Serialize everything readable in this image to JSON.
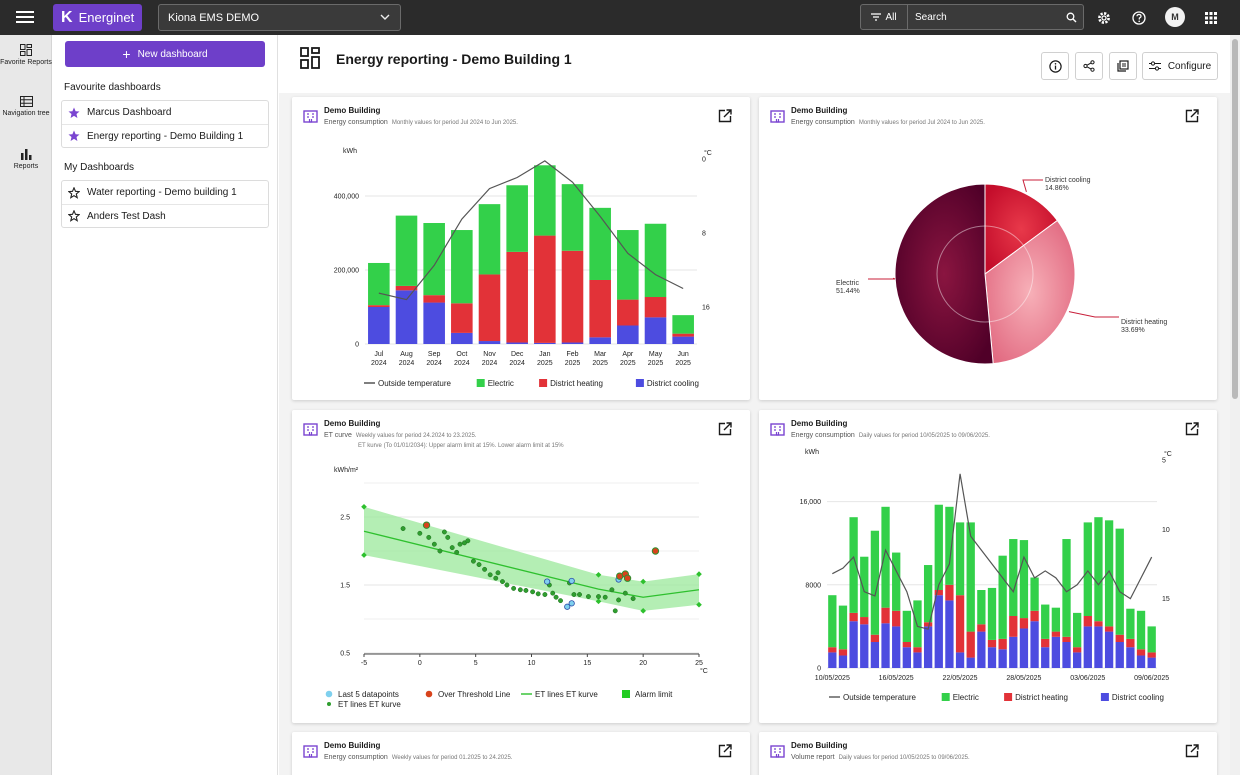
{
  "topbar": {
    "brand": "Energinet",
    "site": "Kiona EMS DEMO",
    "filter_label": "All",
    "search_placeholder": "Search",
    "avatar_initial": "M"
  },
  "rail": [
    {
      "label": "Favorite Reports",
      "icon": "dashboard-icon"
    },
    {
      "label": "Navigation tree",
      "icon": "tree-icon"
    },
    {
      "label": "Reports",
      "icon": "bar-chart-icon"
    }
  ],
  "sidebar": {
    "new_dashboard": "New dashboard",
    "favourites_title": "Favourite dashboards",
    "favourites": [
      "Marcus Dashboard",
      "Energy reporting - Demo Building 1"
    ],
    "mine_title": "My Dashboards",
    "mine": [
      "Water reporting - Demo building 1",
      "Anders Test Dash"
    ]
  },
  "main": {
    "title": "Energy reporting - Demo Building 1",
    "configure": "Configure"
  },
  "colors": {
    "accent": "#6e3fc9",
    "electric": "#33d04a",
    "heating": "#e23238",
    "cooling": "#4d4ce0",
    "temperature": "#555555",
    "et_line": "#2ec02e",
    "et_band": "#9be89b"
  },
  "cards": {
    "c1": {
      "title": "Demo Building",
      "subtitle": "Energy consumption",
      "desc": "Monthly values for period Jul 2024 to Jun 2025."
    },
    "c2": {
      "title": "Demo Building",
      "subtitle": "Energy consumption",
      "desc": "Monthly values for period Jul 2024 to Jun 2025."
    },
    "c3": {
      "title": "Demo Building",
      "subtitle": "ET curve",
      "desc": "Weekly values for period 24.2024 to 23.2025.",
      "desc2": "ET kurve (To 01/01/2034): Upper alarm limit at 15%. Lower alarm limit at 15%"
    },
    "c4": {
      "title": "Demo Building",
      "subtitle": "Energy consumption",
      "desc": "Daily values for period 10/05/2025 to 09/06/2025."
    },
    "c5": {
      "title": "Demo Building",
      "subtitle": "Energy consumption",
      "desc": "Weekly values for period 01.2025 to 24.2025."
    },
    "c6": {
      "title": "Demo Building",
      "subtitle": "Volume report",
      "desc": "Daily values for period 10/05/2025 to 09/06/2025."
    }
  },
  "chart_data": [
    {
      "id": "monthly",
      "type": "bar",
      "stacked": true,
      "categories": [
        "Jul 2024",
        "Aug 2024",
        "Sep 2024",
        "Oct 2024",
        "Nov 2024",
        "Dec 2024",
        "Jan 2025",
        "Feb 2025",
        "Mar 2025",
        "Apr 2025",
        "May 2025",
        "Jun 2025"
      ],
      "series": [
        {
          "name": "District cooling",
          "values": [
            100000,
            145000,
            112000,
            30000,
            8000,
            4000,
            3000,
            4000,
            18000,
            50000,
            72000,
            20000
          ]
        },
        {
          "name": "District heating",
          "values": [
            5000,
            12000,
            20000,
            80000,
            180000,
            245000,
            290000,
            248000,
            155000,
            70000,
            55000,
            8000
          ]
        },
        {
          "name": "Electric",
          "values": [
            114000,
            190000,
            195000,
            198000,
            190000,
            180000,
            190000,
            180000,
            195000,
            188000,
            198000,
            50000
          ]
        }
      ],
      "line": {
        "name": "Outside temperature",
        "values": [
          14.5,
          15.2,
          11.5,
          6.5,
          3.2,
          2.0,
          0.2,
          2.5,
          6.2,
          10.2,
          12.5,
          14.0
        ]
      },
      "ylabel": "kWh",
      "ylim": [
        0,
        500000
      ],
      "yticks": [
        "0",
        "200,000",
        "400,000"
      ],
      "y2label": "°C",
      "y2lim": [
        20,
        0
      ],
      "y2ticks": [
        "0",
        "8",
        "16"
      ],
      "legend": [
        "Outside temperature",
        "Electric",
        "District heating",
        "District cooling"
      ]
    },
    {
      "id": "pie",
      "type": "pie",
      "slices": [
        {
          "name": "District cooling",
          "value": 14.86,
          "label": "14.86%"
        },
        {
          "name": "District heating",
          "value": 33.69,
          "label": "33.69%"
        },
        {
          "name": "Electric",
          "value": 51.44,
          "label": "51.44%"
        }
      ]
    },
    {
      "id": "et",
      "type": "scatter",
      "ylabel": "kWh/m²",
      "xlabel": "°C",
      "xlim": [
        -5,
        25
      ],
      "ylim": [
        0.5,
        3.0
      ],
      "xticks": [
        "-5",
        "0",
        "5",
        "10",
        "15",
        "20",
        "25"
      ],
      "yticks": [
        "0.5",
        "1.5",
        "2.5"
      ],
      "points": [
        [
          -1.5,
          2.33
        ],
        [
          0,
          2.26
        ],
        [
          0.8,
          2.2
        ],
        [
          1.3,
          2.1
        ],
        [
          1.8,
          2.0
        ],
        [
          2.2,
          2.28
        ],
        [
          2.5,
          2.2
        ],
        [
          2.9,
          2.05
        ],
        [
          3.3,
          1.98
        ],
        [
          3.6,
          2.1
        ],
        [
          4.0,
          2.12
        ],
        [
          4.3,
          2.15
        ],
        [
          4.8,
          1.85
        ],
        [
          5.3,
          1.8
        ],
        [
          5.8,
          1.73
        ],
        [
          6.3,
          1.65
        ],
        [
          6.8,
          1.6
        ],
        [
          7.0,
          1.68
        ],
        [
          7.4,
          1.55
        ],
        [
          7.8,
          1.5
        ],
        [
          8.4,
          1.45
        ],
        [
          9.0,
          1.43
        ],
        [
          9.5,
          1.42
        ],
        [
          10.1,
          1.4
        ],
        [
          10.6,
          1.37
        ],
        [
          11.2,
          1.36
        ],
        [
          11.6,
          1.5
        ],
        [
          11.9,
          1.38
        ],
        [
          12.2,
          1.32
        ],
        [
          12.6,
          1.27
        ],
        [
          13.4,
          1.53
        ],
        [
          13.8,
          1.36
        ],
        [
          14.3,
          1.36
        ],
        [
          15.1,
          1.33
        ],
        [
          16.0,
          1.33
        ],
        [
          16.6,
          1.32
        ],
        [
          17.2,
          1.43
        ],
        [
          17.8,
          1.28
        ],
        [
          18.4,
          1.38
        ],
        [
          19.1,
          1.3
        ],
        [
          17.5,
          1.12
        ]
      ],
      "last5": [
        [
          11.4,
          1.55
        ],
        [
          13.6,
          1.56
        ],
        [
          13.6,
          1.23
        ],
        [
          13.2,
          1.18
        ],
        [
          17.8,
          1.58
        ]
      ],
      "over_threshold": [
        [
          0.6,
          2.38
        ],
        [
          17.9,
          1.63
        ],
        [
          18.4,
          1.66
        ],
        [
          18.6,
          1.6
        ],
        [
          21.1,
          2.0
        ]
      ],
      "alarm_upper": [
        [
          -5,
          2.65
        ],
        [
          16,
          1.65
        ],
        [
          20,
          1.55
        ],
        [
          25,
          1.66
        ]
      ],
      "alarm_lower": [
        [
          -5,
          1.94
        ],
        [
          16,
          1.26
        ],
        [
          20,
          1.12
        ],
        [
          25,
          1.21
        ]
      ],
      "et_line": [
        [
          -5,
          2.29
        ],
        [
          16,
          1.44
        ],
        [
          20,
          1.32
        ],
        [
          25,
          1.43
        ]
      ],
      "legend": [
        "Last 5 datapoints",
        "Over Threshold Line",
        "ET lines ET kurve",
        "Alarm limit",
        "ET lines ET kurve"
      ]
    },
    {
      "id": "daily",
      "type": "bar",
      "stacked": true,
      "categories": [
        "10/05/2025",
        "11/05/2025",
        "12/05/2025",
        "13/05/2025",
        "14/05/2025",
        "15/05/2025",
        "16/05/2025",
        "17/05/2025",
        "18/05/2025",
        "19/05/2025",
        "20/05/2025",
        "21/05/2025",
        "22/05/2025",
        "23/05/2025",
        "24/05/2025",
        "25/05/2025",
        "26/05/2025",
        "27/05/2025",
        "28/05/2025",
        "29/05/2025",
        "30/05/2025",
        "31/05/2025",
        "01/06/2025",
        "02/06/2025",
        "03/06/2025",
        "04/06/2025",
        "05/06/2025",
        "06/06/2025",
        "07/06/2025",
        "08/06/2025",
        "09/06/2025"
      ],
      "xticks": [
        "10/05/2025",
        "16/05/2025",
        "22/05/2025",
        "28/05/2025",
        "03/06/2025",
        "09/06/2025"
      ],
      "series": [
        {
          "name": "District cooling",
          "values": [
            1500,
            1200,
            4500,
            4200,
            2500,
            4300,
            4000,
            2000,
            1500,
            4000,
            7000,
            6500,
            1500,
            1000,
            3500,
            2000,
            1800,
            3000,
            3800,
            4500,
            2000,
            3000,
            2500,
            1500,
            4000,
            4000,
            3500,
            2500,
            2000,
            1200,
            1000
          ]
        },
        {
          "name": "District heating",
          "values": [
            500,
            600,
            800,
            700,
            700,
            1500,
            1500,
            500,
            500,
            400,
            500,
            1500,
            5500,
            2500,
            700,
            700,
            1000,
            2000,
            1000,
            1000,
            800,
            500,
            500,
            500,
            1000,
            500,
            500,
            700,
            800,
            600,
            500
          ]
        },
        {
          "name": "Electric",
          "values": [
            5000,
            4200,
            9200,
            5800,
            10000,
            9700,
            5600,
            3000,
            4500,
            5500,
            8200,
            7500,
            7000,
            10500,
            3300,
            5000,
            8000,
            7400,
            7500,
            3200,
            3300,
            2300,
            9400,
            3300,
            9000,
            10000,
            10200,
            10200,
            2900,
            3700,
            2500
          ]
        }
      ],
      "line": {
        "name": "Outside temperature",
        "values": [
          13.2,
          12.8,
          12.0,
          14.5,
          14.8,
          11.5,
          13.0,
          14.5,
          17.0,
          17.2,
          14.0,
          12.5,
          6.0,
          10.5,
          11.5,
          12.5,
          13.5,
          14.5,
          12.0,
          13.5,
          13.0,
          13.5,
          14.5,
          14.0,
          13.0,
          14.0,
          13.0,
          14.5,
          15.0,
          13.5,
          12.0
        ]
      },
      "ylabel": "kWh",
      "ylim": [
        0,
        20000
      ],
      "yticks": [
        "0",
        "8000",
        "16,000"
      ],
      "y2label": "°C",
      "y2lim": [
        20,
        5
      ],
      "y2ticks": [
        "5",
        "10",
        "15"
      ],
      "legend": [
        "Outside temperature",
        "Electric",
        "District heating",
        "District cooling"
      ]
    }
  ]
}
